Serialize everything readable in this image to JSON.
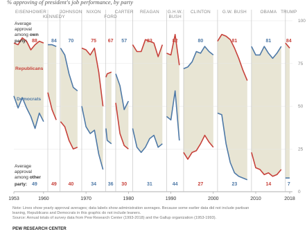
{
  "chart_data": {
    "type": "line",
    "title": "",
    "subtitle": "% approving of president's job performance, by party",
    "xlabel": "",
    "ylabel": "",
    "xlim": [
      1953,
      2018
    ],
    "ylim": [
      0,
      100
    ],
    "yticks": [
      0,
      25,
      50,
      75,
      100
    ],
    "ytick_labels": [
      "0",
      "25",
      "50",
      "75",
      "100"
    ],
    "xticks": [
      1953,
      1960,
      1970,
      1980,
      1990,
      2000,
      2010,
      2018
    ],
    "xtick_labels": [
      "1953",
      "1960",
      "1970",
      "1980",
      "1990",
      "2000",
      "2010",
      "2018"
    ],
    "grid": true,
    "annotations": {
      "own_label": [
        "Average",
        "approval",
        "among "
      ],
      "own_bold": "own",
      "own_party": "party:",
      "own_value": "88",
      "other_label": [
        "Average",
        "approval",
        "among "
      ],
      "other_bold": "other",
      "other_party": "party:",
      "other_value": "49",
      "republicans": "Republicans",
      "democrats": "Democrats"
    },
    "presidents": [
      {
        "name": "EISENHOWER",
        "start": 1953,
        "end": 1961,
        "own_party": "R",
        "own_avg": "88",
        "other_avg": "49"
      },
      {
        "name": "KENNEDY",
        "start": 1961,
        "end": 1963.9,
        "own_party": "D",
        "own_avg": "84",
        "other_avg": "49"
      },
      {
        "name": "JOHNSON",
        "start": 1963.9,
        "end": 1969,
        "own_party": "D",
        "own_avg": "70",
        "other_avg": "40"
      },
      {
        "name": "NIXON",
        "start": 1969,
        "end": 1974.6,
        "own_party": "R",
        "own_avg": "75",
        "other_avg": "34"
      },
      {
        "name": "FORD",
        "start": 1974.6,
        "end": 1977,
        "own_party": "R",
        "own_avg": "67",
        "other_avg": "36"
      },
      {
        "name": "CARTER",
        "start": 1977,
        "end": 1981,
        "own_party": "D",
        "own_avg": "57",
        "other_avg": "30"
      },
      {
        "name": "REAGAN",
        "start": 1981,
        "end": 1989,
        "own_party": "R",
        "own_avg": "83",
        "other_avg": "31"
      },
      {
        "name": "G.H.W. BUSH",
        "start": 1989,
        "end": 1993,
        "own_party": "R",
        "own_avg": "82",
        "other_avg": "44"
      },
      {
        "name": "CLINTON",
        "start": 1993,
        "end": 2001,
        "own_party": "D",
        "own_avg": "80",
        "other_avg": "27"
      },
      {
        "name": "G.W. BUSH",
        "start": 2001,
        "end": 2009,
        "own_party": "R",
        "own_avg": "81",
        "other_avg": "23"
      },
      {
        "name": "OBAMA",
        "start": 2009,
        "end": 2017,
        "own_party": "D",
        "own_avg": "81",
        "other_avg": "14"
      },
      {
        "name": "TRUMP",
        "start": 2017,
        "end": 2018.6,
        "own_party": "R",
        "own_avg": "84",
        "other_avg": "7"
      }
    ],
    "series": [
      {
        "name": "Republicans",
        "color": "#c7413a",
        "segments": [
          [
            [
              1953,
              87
            ],
            [
              1954,
              86
            ],
            [
              1955,
              90
            ],
            [
              1956,
              88
            ],
            [
              1957,
              83
            ],
            [
              1958,
              86
            ],
            [
              1959,
              88
            ],
            [
              1960,
              87
            ]
          ],
          [
            [
              1961,
              58
            ],
            [
              1962,
              48
            ],
            [
              1963,
              42
            ]
          ],
          [
            [
              1964,
              41
            ],
            [
              1965,
              38
            ],
            [
              1966,
              30
            ],
            [
              1967,
              25
            ],
            [
              1968,
              26
            ]
          ],
          [
            [
              1969,
              84
            ],
            [
              1970,
              83
            ],
            [
              1971,
              80
            ],
            [
              1972,
              84
            ],
            [
              1973,
              70
            ],
            [
              1974,
              50
            ]
          ],
          [
            [
              1974.7,
              67
            ],
            [
              1975,
              69
            ],
            [
              1976,
              70
            ]
          ],
          [
            [
              1977,
              52
            ],
            [
              1978,
              34
            ],
            [
              1979,
              27
            ],
            [
              1980,
              25
            ]
          ],
          [
            [
              1981,
              86
            ],
            [
              1982,
              82
            ],
            [
              1983,
              82
            ],
            [
              1984,
              89
            ],
            [
              1985,
              88
            ],
            [
              1986,
              87
            ],
            [
              1987,
              79
            ],
            [
              1988,
              86
            ]
          ],
          [
            [
              1989,
              81
            ],
            [
              1990,
              80
            ],
            [
              1991,
              92
            ],
            [
              1992,
              74
            ]
          ],
          [
            [
              1993,
              23
            ],
            [
              1994,
              19
            ],
            [
              1995,
              23
            ],
            [
              1996,
              24
            ],
            [
              1997,
              28
            ],
            [
              1998,
              33
            ],
            [
              1999,
              29
            ],
            [
              2000,
              26
            ]
          ],
          [
            [
              2001,
              88
            ],
            [
              2002,
              92
            ],
            [
              2003,
              91
            ],
            [
              2004,
              89
            ],
            [
              2005,
              84
            ],
            [
              2006,
              78
            ],
            [
              2007,
              71
            ],
            [
              2008,
              65
            ]
          ],
          [
            [
              2009,
              23
            ],
            [
              2010,
              14
            ],
            [
              2011,
              13
            ],
            [
              2012,
              10
            ],
            [
              2013,
              11
            ],
            [
              2014,
              9
            ],
            [
              2015,
              10
            ],
            [
              2016,
              13
            ]
          ],
          [
            [
              2017,
              87
            ],
            [
              2018,
              84
            ]
          ]
        ]
      },
      {
        "name": "Democrats",
        "color": "#4e79a7",
        "segments": [
          [
            [
              1953,
              56
            ],
            [
              1954,
              49
            ],
            [
              1955,
              55
            ],
            [
              1956,
              49
            ],
            [
              1957,
              44
            ],
            [
              1958,
              37
            ],
            [
              1959,
              46
            ],
            [
              1960,
              41
            ]
          ],
          [
            [
              1961,
              86
            ],
            [
              1962,
              86
            ],
            [
              1963,
              85
            ]
          ],
          [
            [
              1964,
              84
            ],
            [
              1965,
              80
            ],
            [
              1966,
              69
            ],
            [
              1967,
              61
            ],
            [
              1968,
              59
            ]
          ],
          [
            [
              1969,
              50
            ],
            [
              1970,
              38
            ],
            [
              1971,
              34
            ],
            [
              1972,
              36
            ],
            [
              1973,
              22
            ],
            [
              1974,
              13
            ]
          ],
          [
            [
              1974.7,
              37
            ],
            [
              1975,
              30
            ],
            [
              1976,
              28
            ]
          ],
          [
            [
              1977,
              69
            ],
            [
              1978,
              62
            ],
            [
              1979,
              48
            ],
            [
              1980,
              53
            ]
          ],
          [
            [
              1981,
              37
            ],
            [
              1982,
              26
            ],
            [
              1983,
              23
            ],
            [
              1984,
              26
            ],
            [
              1985,
              31
            ],
            [
              1986,
              33
            ],
            [
              1987,
              26
            ],
            [
              1988,
              28
            ]
          ],
          [
            [
              1989,
              44
            ],
            [
              1990,
              42
            ],
            [
              1991,
              59
            ],
            [
              1992,
              30
            ]
          ],
          [
            [
              1993,
              72
            ],
            [
              1994,
              73
            ],
            [
              1995,
              76
            ],
            [
              1996,
              82
            ],
            [
              1997,
              81
            ],
            [
              1998,
              85
            ],
            [
              1999,
              82
            ],
            [
              2000,
              80
            ]
          ],
          [
            [
              2001,
              46
            ],
            [
              2002,
              45
            ],
            [
              2003,
              28
            ],
            [
              2004,
              17
            ],
            [
              2005,
              11
            ],
            [
              2006,
              9
            ],
            [
              2007,
              8
            ],
            [
              2008,
              7
            ]
          ],
          [
            [
              2009,
              85
            ],
            [
              2010,
              80
            ],
            [
              2011,
              80
            ],
            [
              2012,
              85
            ],
            [
              2013,
              81
            ],
            [
              2014,
              78
            ],
            [
              2015,
              81
            ],
            [
              2016,
              85
            ]
          ],
          [
            [
              2017,
              8
            ],
            [
              2018,
              8
            ]
          ]
        ]
      }
    ]
  },
  "footer": {
    "note_lines": [
      "Note: Lines show yearly approval averages; data labels show administration averages. Because some earlier data did not include partisan",
      "leaning, Republicans and Democrats in this graphic do not include leaners.",
      "Source: Annual totals of survey data from Pew Research Center (1993-2018) and the Gallup organization (1953-1993)."
    ],
    "source_org": "PEW RESEARCH CENTER"
  }
}
